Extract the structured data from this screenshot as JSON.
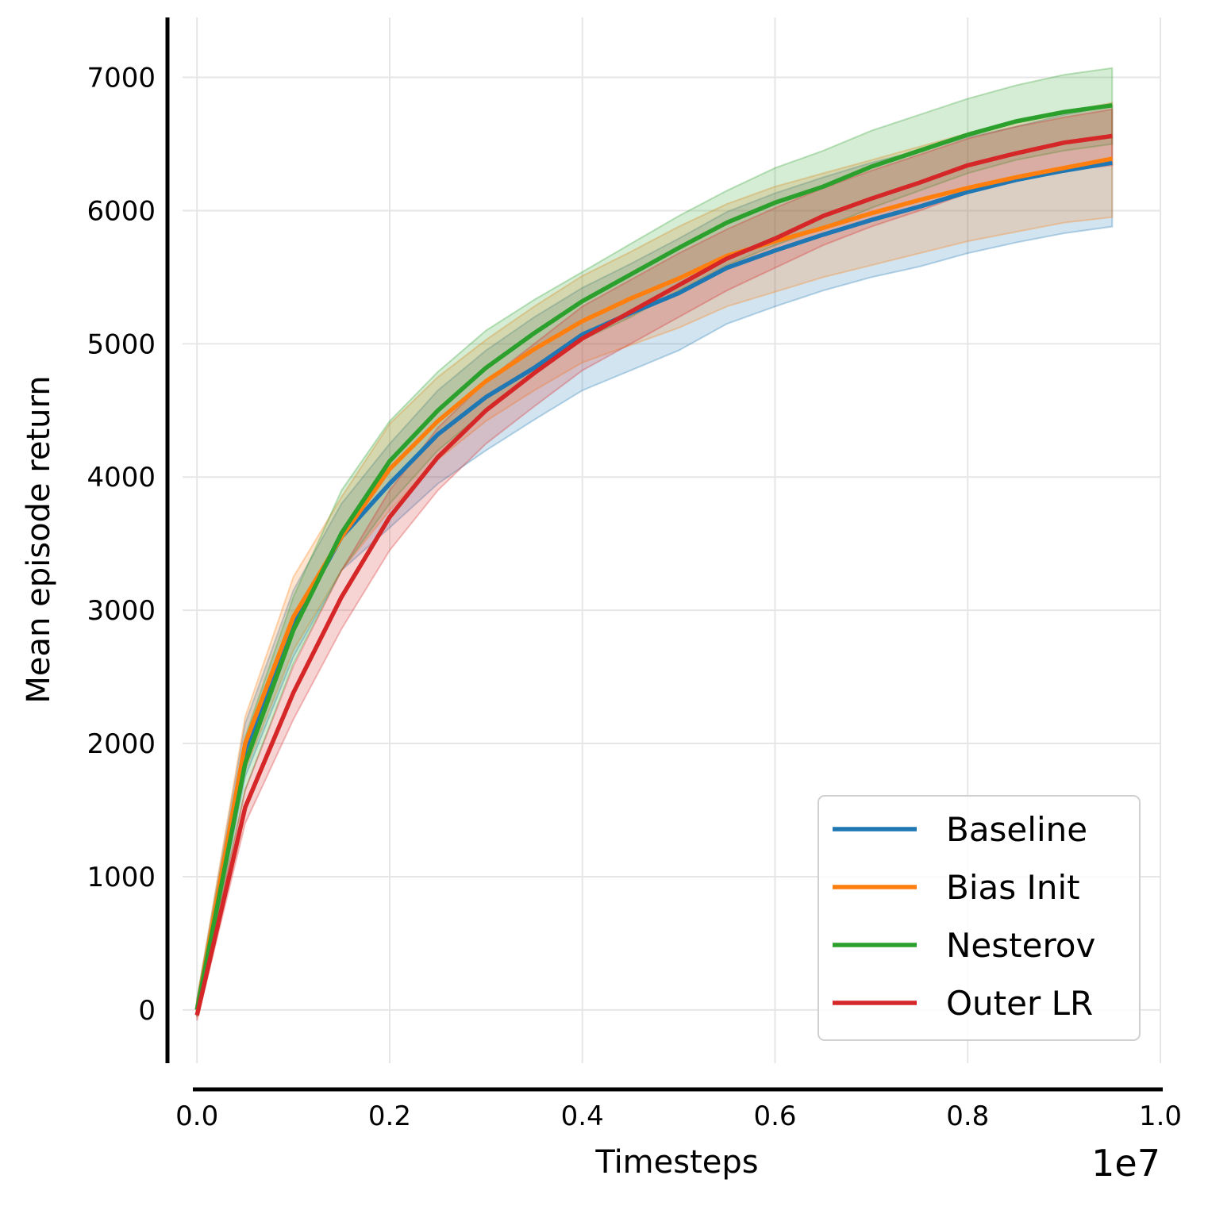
{
  "chart_data": {
    "type": "line",
    "title": "",
    "xlabel": "Timesteps",
    "ylabel": "Mean episode return",
    "x_offset_label": "1e7",
    "xlim": [
      -0.015,
      1.0
    ],
    "ylim": [
      -400,
      7450
    ],
    "x_ticks": [
      0.0,
      0.2,
      0.4,
      0.6,
      0.8,
      1.0
    ],
    "x_tick_labels": [
      "0.0",
      "0.2",
      "0.4",
      "0.6",
      "0.8",
      "1.0"
    ],
    "y_ticks": [
      0,
      1000,
      2000,
      3000,
      4000,
      5000,
      6000,
      7000
    ],
    "y_tick_labels": [
      "0",
      "1000",
      "2000",
      "3000",
      "4000",
      "5000",
      "6000",
      "7000"
    ],
    "grid": true,
    "legend_position": "lower-right",
    "x": [
      0.0,
      0.05,
      0.1,
      0.15,
      0.2,
      0.25,
      0.3,
      0.35,
      0.4,
      0.45,
      0.5,
      0.55,
      0.6,
      0.65,
      0.7,
      0.75,
      0.8,
      0.85,
      0.9,
      0.95
    ],
    "series": [
      {
        "name": "Baseline",
        "color": "#1f77b4",
        "values": [
          0,
          1950,
          2900,
          3550,
          3950,
          4320,
          4600,
          4820,
          5070,
          5230,
          5380,
          5570,
          5700,
          5820,
          5930,
          6030,
          6140,
          6230,
          6300,
          6360
        ],
        "lower": [
          -50,
          1750,
          2650,
          3300,
          3620,
          3950,
          4200,
          4430,
          4650,
          4800,
          4950,
          5150,
          5280,
          5400,
          5500,
          5580,
          5680,
          5760,
          5830,
          5880
        ],
        "upper": [
          80,
          2150,
          3150,
          3800,
          4250,
          4650,
          4950,
          5200,
          5420,
          5600,
          5790,
          5990,
          6130,
          6250,
          6360,
          6450,
          6550,
          6630,
          6720,
          6790
        ]
      },
      {
        "name": "Bias Init",
        "color": "#ff7f0e",
        "values": [
          0,
          2000,
          2950,
          3550,
          4060,
          4420,
          4720,
          4960,
          5170,
          5340,
          5490,
          5660,
          5770,
          5870,
          5980,
          6080,
          6170,
          6250,
          6320,
          6390
        ],
        "lower": [
          -50,
          1800,
          2700,
          3300,
          3750,
          4130,
          4420,
          4650,
          4860,
          4990,
          5120,
          5280,
          5390,
          5500,
          5590,
          5680,
          5770,
          5840,
          5910,
          5950
        ],
        "upper": [
          80,
          2200,
          3250,
          3850,
          4400,
          4750,
          5030,
          5280,
          5510,
          5690,
          5880,
          6050,
          6180,
          6280,
          6380,
          6480,
          6580,
          6670,
          6740,
          6810
        ]
      },
      {
        "name": "Nesterov",
        "color": "#2ca02c",
        "values": [
          0,
          1850,
          2850,
          3580,
          4120,
          4500,
          4820,
          5080,
          5320,
          5520,
          5720,
          5910,
          6060,
          6180,
          6330,
          6450,
          6570,
          6670,
          6740,
          6790
        ],
        "lower": [
          -50,
          1650,
          2600,
          3300,
          3800,
          4200,
          4500,
          4780,
          5030,
          5200,
          5400,
          5590,
          5740,
          5870,
          6020,
          6150,
          6280,
          6380,
          6450,
          6500
        ],
        "upper": [
          80,
          2050,
          3100,
          3900,
          4420,
          4790,
          5100,
          5330,
          5540,
          5750,
          5960,
          6150,
          6320,
          6450,
          6600,
          6720,
          6840,
          6940,
          7020,
          7070
        ]
      },
      {
        "name": "Outer LR",
        "color": "#d62728",
        "values": [
          -40,
          1520,
          2380,
          3100,
          3700,
          4150,
          4500,
          4780,
          5040,
          5240,
          5440,
          5640,
          5790,
          5960,
          6090,
          6210,
          6340,
          6430,
          6510,
          6560
        ],
        "lower": [
          -80,
          1400,
          2180,
          2860,
          3450,
          3900,
          4250,
          4530,
          4800,
          5000,
          5200,
          5400,
          5570,
          5740,
          5880,
          6000,
          6130,
          6220,
          6300,
          6340
        ],
        "upper": [
          20,
          1650,
          2580,
          3300,
          3900,
          4370,
          4720,
          5000,
          5280,
          5480,
          5680,
          5860,
          6020,
          6170,
          6300,
          6420,
          6540,
          6630,
          6700,
          6760
        ]
      }
    ]
  }
}
